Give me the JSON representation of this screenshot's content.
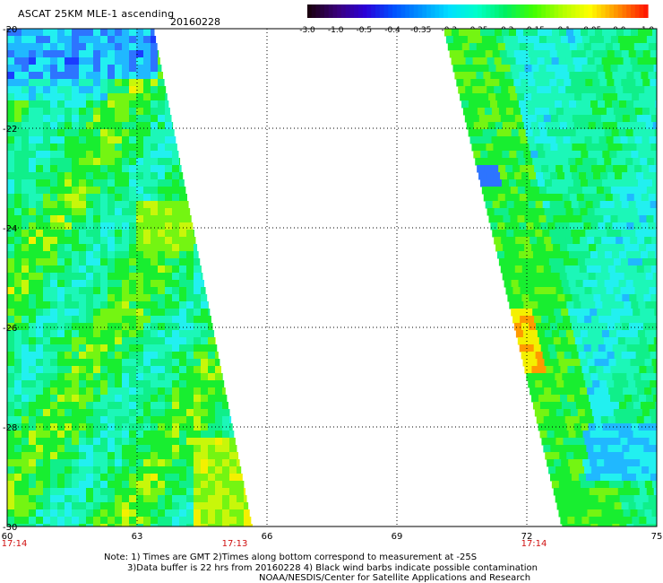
{
  "header": {
    "title": "ASCAT 25KM MLE-1 ascending",
    "date": "20160228"
  },
  "colorbar": {
    "labels": [
      "-3.0",
      "-1.0",
      "-0.5",
      "-0.4",
      "-0.35",
      "-0.3",
      "-0.25",
      "-0.2",
      "-0.15",
      "-0.1",
      "-0.05",
      "0.0",
      "1.0"
    ],
    "colors": [
      "#1a0010",
      "#3a007a",
      "#2a00d8",
      "#0050ff",
      "#0096ff",
      "#00e0ff",
      "#00ffc8",
      "#00f060",
      "#40ff00",
      "#b0ff00",
      "#ffff00",
      "#ff9000",
      "#ff1a00"
    ]
  },
  "map": {
    "lon_ticks": [
      "60",
      "63",
      "66",
      "69",
      "72",
      "75"
    ],
    "lat_ticks": [
      "-20",
      "-22",
      "-24",
      "-26",
      "-28",
      "-30"
    ],
    "time_labels": [
      "17:14",
      "17:13",
      "17:14"
    ]
  },
  "notes": {
    "line1": "Note: 1) Times are GMT 2)Times along bottom correspond to measurement at -25S",
    "line2": "3)Data buffer is 22 hrs from 20160228 4) Black wind barbs indicate possible contamination",
    "line3": "NOAA/NESDIS/Center for Satellite Applications and Research"
  }
}
